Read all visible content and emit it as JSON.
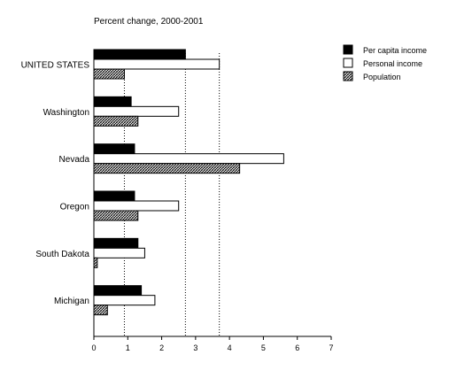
{
  "chart_data": {
    "type": "bar",
    "orientation": "horizontal",
    "title": "Percent change, 2000-2001",
    "xlabel": "",
    "ylabel": "",
    "xlim": [
      0,
      7
    ],
    "xticks": [
      "0",
      "1",
      "2",
      "3",
      "4",
      "5",
      "6",
      "7"
    ],
    "categories": [
      "UNITED STATES",
      "Washington",
      "Nevada",
      "Oregon",
      "South Dakota",
      "Michigan"
    ],
    "series": [
      {
        "name": "Per capita income",
        "values": [
          2.7,
          1.1,
          1.2,
          1.2,
          1.3,
          1.4
        ],
        "color": "#000000",
        "fill": "solid"
      },
      {
        "name": "Personal income",
        "values": [
          3.7,
          2.5,
          5.6,
          2.5,
          1.5,
          1.8
        ],
        "color": "#ffffff",
        "fill": "solid"
      },
      {
        "name": "Population",
        "values": [
          0.9,
          1.3,
          4.3,
          1.3,
          0.1,
          0.4
        ],
        "color": "#7a7a7a",
        "fill": "hatched"
      }
    ],
    "reference_lines": [
      0.9,
      2.7,
      3.7
    ],
    "legend_position": "top-right",
    "grid": false
  }
}
